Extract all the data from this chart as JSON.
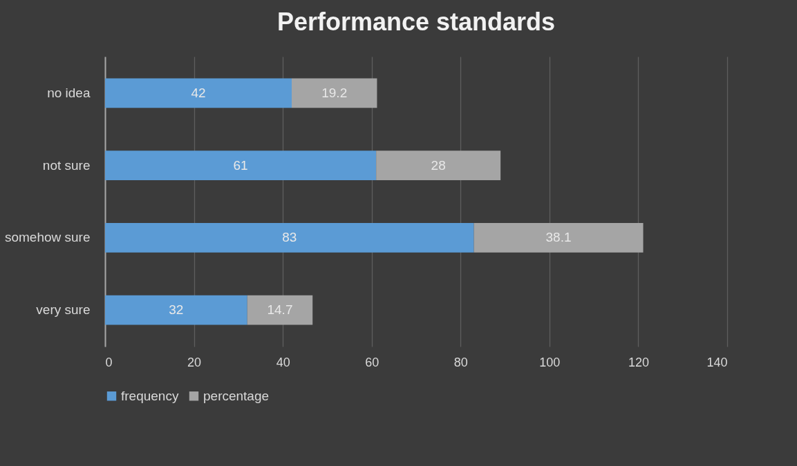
{
  "chart_data": {
    "type": "bar",
    "orientation": "horizontal",
    "stacked": true,
    "title": "Performance standards",
    "categories": [
      "no idea",
      "not sure",
      "somehow sure",
      "very sure"
    ],
    "series": [
      {
        "name": "frequency",
        "color": "#5b9bd5",
        "values": [
          42,
          61,
          83,
          32
        ]
      },
      {
        "name": "percentage",
        "color": "#a5a5a5",
        "values": [
          19.2,
          28,
          38.1,
          14.7
        ]
      }
    ],
    "xlim": [
      0,
      140
    ],
    "xticks": [
      0,
      20,
      40,
      60,
      80,
      100,
      120,
      140
    ],
    "grid": "x",
    "legend": "bottom",
    "data_labels": true
  }
}
